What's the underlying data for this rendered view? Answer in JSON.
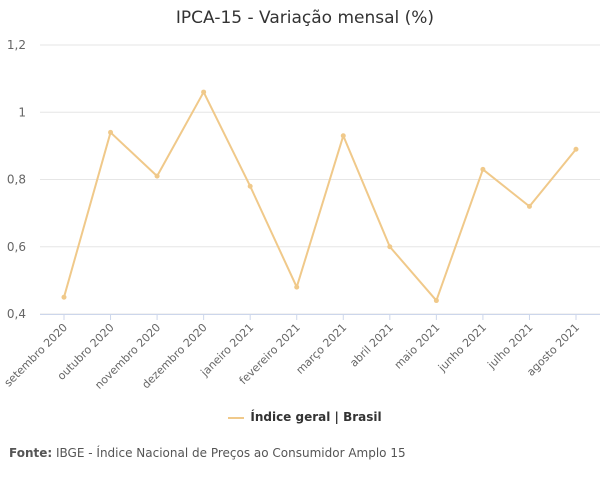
{
  "chart_data": {
    "type": "line",
    "title": "IPCA-15 - Variação mensal (%)",
    "categories": [
      "setembro 2020",
      "outubro 2020",
      "novembro 2020",
      "dezembro 2020",
      "janeiro 2021",
      "fevereiro 2021",
      "março 2021",
      "abril 2021",
      "maio 2021",
      "junho 2021",
      "julho 2021",
      "agosto 2021"
    ],
    "series": [
      {
        "name": "Índice geral | Brasil",
        "values": [
          0.45,
          0.94,
          0.81,
          1.06,
          0.78,
          0.48,
          0.93,
          0.6,
          0.44,
          0.83,
          0.72,
          0.89
        ],
        "color": "#f0c98a"
      }
    ],
    "yticks": [
      "0,4",
      "0,6",
      "0,8",
      "1",
      "1,2"
    ],
    "ylim": [
      0.4,
      1.2
    ],
    "grid": true,
    "legend": "bottom"
  },
  "source": {
    "label": "Fonte:",
    "text": "IBGE - Índice Nacional de Preços ao Consumidor Amplo 15"
  }
}
